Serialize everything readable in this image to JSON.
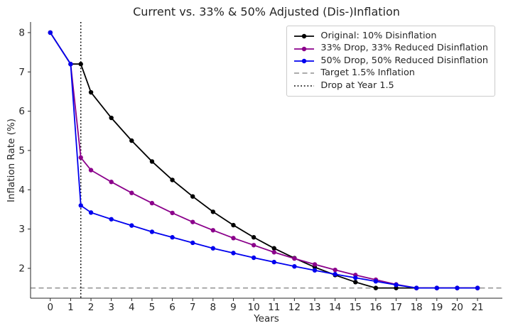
{
  "chart_data": {
    "type": "line",
    "title": "Current vs. 33% & 50% Adjusted (Dis-)Inflation",
    "xlabel": "Years",
    "ylabel": "Inflation Rate (%)",
    "xlim": [
      -0.97,
      22.22
    ],
    "ylim": [
      1.24,
      8.27
    ],
    "xticks": [
      0,
      1,
      2,
      3,
      4,
      5,
      6,
      7,
      8,
      9,
      10,
      11,
      12,
      13,
      14,
      15,
      16,
      17,
      18,
      19,
      20,
      21
    ],
    "yticks": [
      2,
      3,
      4,
      5,
      6,
      7,
      8
    ],
    "grid": false,
    "legend_position": "upper right",
    "x": [
      0,
      1,
      1.5,
      2,
      3,
      4,
      5,
      6,
      7,
      8,
      9,
      10,
      11,
      12,
      13,
      14,
      15,
      16,
      17,
      18,
      19,
      20,
      21
    ],
    "series": [
      {
        "name": "Original: 10% Disinflation",
        "color": "#000000",
        "marker": "circle",
        "values": [
          8.0,
          7.2,
          7.2,
          6.48,
          5.83,
          5.25,
          4.72,
          4.25,
          3.83,
          3.44,
          3.1,
          2.79,
          2.51,
          2.26,
          2.03,
          1.83,
          1.65,
          1.5,
          1.5,
          1.5,
          1.5,
          1.5,
          1.5
        ]
      },
      {
        "name": "33% Drop, 33% Reduced Disinflation",
        "color": "#8b008b",
        "marker": "circle",
        "values": [
          8.0,
          7.2,
          4.82,
          4.5,
          4.2,
          3.92,
          3.66,
          3.41,
          3.18,
          2.97,
          2.77,
          2.59,
          2.41,
          2.25,
          2.1,
          1.96,
          1.83,
          1.71,
          1.59,
          1.5,
          1.5,
          1.5,
          1.5
        ]
      },
      {
        "name": "50% Drop, 50% Reduced Disinflation",
        "color": "#0000ee",
        "marker": "circle",
        "values": [
          8.0,
          7.2,
          3.6,
          3.42,
          3.25,
          3.09,
          2.93,
          2.79,
          2.65,
          2.51,
          2.39,
          2.27,
          2.16,
          2.05,
          1.95,
          1.85,
          1.76,
          1.67,
          1.58,
          1.5,
          1.5,
          1.5,
          1.5
        ]
      }
    ],
    "reference_lines": [
      {
        "name": "Target 1.5% Inflation",
        "orientation": "horizontal",
        "value": 1.5,
        "style": "dashed",
        "color": "#909090"
      },
      {
        "name": "Drop at Year 1.5",
        "orientation": "vertical",
        "value": 1.5,
        "style": "dotted",
        "color": "#000000"
      }
    ]
  }
}
